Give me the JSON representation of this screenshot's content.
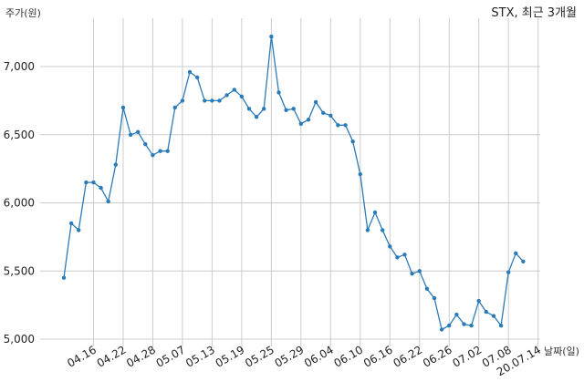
{
  "chart_data": {
    "type": "line",
    "title": "STX, 최근 3개월",
    "ylabel": "주가(원)",
    "xlabel": "날짜(일)",
    "ylim": [
      5000,
      7350
    ],
    "yticks": [
      5000,
      5500,
      6000,
      6500,
      7000
    ],
    "ytick_labels": [
      "5,000",
      "5,500",
      "6,000",
      "6,500",
      "7,000"
    ],
    "xticks": [
      {
        "index": 4,
        "label": "04.16"
      },
      {
        "index": 8,
        "label": "04.22"
      },
      {
        "index": 12,
        "label": "04.28"
      },
      {
        "index": 16,
        "label": "05.07"
      },
      {
        "index": 20,
        "label": "05.13"
      },
      {
        "index": 24,
        "label": "05.19"
      },
      {
        "index": 28,
        "label": "05.25"
      },
      {
        "index": 32,
        "label": "05.29"
      },
      {
        "index": 36,
        "label": "06.04"
      },
      {
        "index": 40,
        "label": "06.10"
      },
      {
        "index": 44,
        "label": "06.16"
      },
      {
        "index": 48,
        "label": "06.22"
      },
      {
        "index": 52,
        "label": "06.26"
      },
      {
        "index": 56,
        "label": "07.02"
      },
      {
        "index": 60,
        "label": "07.08"
      },
      {
        "index": 64,
        "label": "20.07.14"
      }
    ],
    "grid": true,
    "color": "#2b7bb9",
    "values": [
      5450,
      5850,
      5800,
      6150,
      6150,
      6110,
      6010,
      6280,
      6700,
      6500,
      6520,
      6430,
      6350,
      6380,
      6380,
      6700,
      6750,
      6960,
      6920,
      6750,
      6750,
      6750,
      6790,
      6830,
      6780,
      6690,
      6630,
      6690,
      7220,
      6810,
      6680,
      6690,
      6580,
      6610,
      6740,
      6660,
      6640,
      6570,
      6570,
      6450,
      6210,
      5800,
      5930,
      5800,
      5680,
      5600,
      5620,
      5480,
      5500,
      5370,
      5300,
      5070,
      5100,
      5180,
      5110,
      5100,
      5280,
      5200,
      5170,
      5100,
      5490,
      5630,
      5570
    ]
  }
}
